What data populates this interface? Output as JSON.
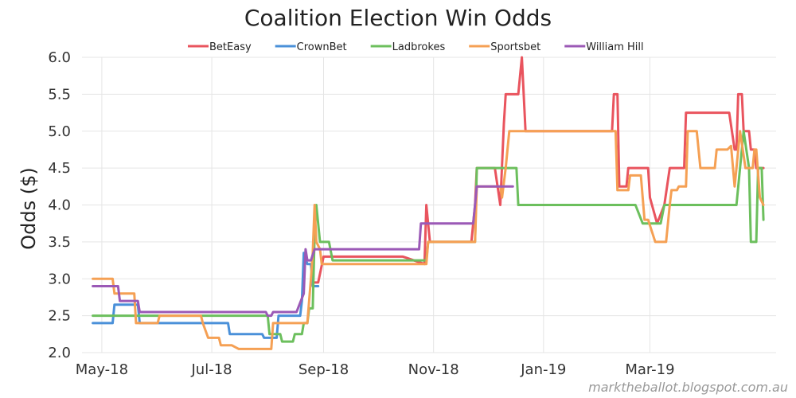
{
  "chart_data": {
    "type": "line",
    "title": "Coalition Election Win Odds",
    "xlabel": "",
    "ylabel": "Odds ($)",
    "ylim": [
      2.0,
      6.0
    ],
    "yticks": [
      "2.0",
      "2.5",
      "3.0",
      "3.5",
      "4.0",
      "4.5",
      "5.0",
      "5.5",
      "6.0"
    ],
    "xlim": [
      "2018-04-20",
      "2019-05-10"
    ],
    "xticks": [
      {
        "date": "2018-05-01",
        "label": "May-18"
      },
      {
        "date": "2018-07-01",
        "label": "Jul-18"
      },
      {
        "date": "2018-09-01",
        "label": "Sep-18"
      },
      {
        "date": "2018-11-01",
        "label": "Nov-18"
      },
      {
        "date": "2019-01-01",
        "label": "Jan-19"
      },
      {
        "date": "2019-03-01",
        "label": "Mar-19"
      }
    ],
    "grid": true,
    "legend_position": "top",
    "credit": "marktheballot.blogspot.com.au",
    "series": [
      {
        "name": "BetEasy",
        "color": "#e9545e",
        "points": [
          [
            "2018-08-25",
            2.95
          ],
          [
            "2018-08-29",
            2.95
          ],
          [
            "2018-09-01",
            3.3
          ],
          [
            "2018-10-15",
            3.3
          ],
          [
            "2018-10-27",
            3.2
          ],
          [
            "2018-10-28",
            4.0
          ],
          [
            "2018-10-30",
            3.5
          ],
          [
            "2018-11-22",
            3.5
          ],
          [
            "2018-11-24",
            4.0
          ],
          [
            "2018-11-25",
            4.5
          ],
          [
            "2018-12-05",
            4.5
          ],
          [
            "2018-12-08",
            4.0
          ],
          [
            "2018-12-10",
            5.1
          ],
          [
            "2018-12-11",
            5.5
          ],
          [
            "2018-12-18",
            5.5
          ],
          [
            "2018-12-20",
            6.0
          ],
          [
            "2018-12-22",
            5.0
          ],
          [
            "2019-02-08",
            5.0
          ],
          [
            "2019-02-09",
            5.5
          ],
          [
            "2019-02-11",
            5.5
          ],
          [
            "2019-02-12",
            4.25
          ],
          [
            "2019-02-16",
            4.25
          ],
          [
            "2019-02-17",
            4.5
          ],
          [
            "2019-02-28",
            4.5
          ],
          [
            "2019-03-01",
            4.1
          ],
          [
            "2019-03-05",
            3.75
          ],
          [
            "2019-03-09",
            4.0
          ],
          [
            "2019-03-12",
            4.5
          ],
          [
            "2019-03-20",
            4.5
          ],
          [
            "2019-03-21",
            5.25
          ],
          [
            "2019-04-14",
            5.25
          ],
          [
            "2019-04-17",
            4.75
          ],
          [
            "2019-04-18",
            4.75
          ],
          [
            "2019-04-19",
            5.5
          ],
          [
            "2019-04-21",
            5.5
          ],
          [
            "2019-04-22",
            5.0
          ],
          [
            "2019-04-25",
            5.0
          ],
          [
            "2019-04-26",
            4.75
          ],
          [
            "2019-04-28",
            4.75
          ],
          [
            "2019-04-29",
            4.5
          ],
          [
            "2019-05-03",
            4.5
          ]
        ]
      },
      {
        "name": "CrownBet",
        "color": "#4a90d9",
        "points": [
          [
            "2018-04-26",
            2.4
          ],
          [
            "2018-05-07",
            2.4
          ],
          [
            "2018-05-08",
            2.65
          ],
          [
            "2018-05-21",
            2.65
          ],
          [
            "2018-05-22",
            2.4
          ],
          [
            "2018-07-10",
            2.4
          ],
          [
            "2018-07-11",
            2.25
          ],
          [
            "2018-07-29",
            2.25
          ],
          [
            "2018-07-30",
            2.2
          ],
          [
            "2018-08-06",
            2.2
          ],
          [
            "2018-08-07",
            2.5
          ],
          [
            "2018-08-19",
            2.5
          ],
          [
            "2018-08-20",
            2.7
          ],
          [
            "2018-08-21",
            3.35
          ],
          [
            "2018-08-23",
            3.2
          ],
          [
            "2018-08-25",
            3.2
          ],
          [
            "2018-08-26",
            2.9
          ],
          [
            "2018-08-29",
            2.9
          ]
        ]
      },
      {
        "name": "Ladbrokes",
        "color": "#6cbf5d",
        "points": [
          [
            "2018-04-26",
            2.5
          ],
          [
            "2018-08-01",
            2.5
          ],
          [
            "2018-08-02",
            2.25
          ],
          [
            "2018-08-08",
            2.25
          ],
          [
            "2018-08-09",
            2.15
          ],
          [
            "2018-08-15",
            2.15
          ],
          [
            "2018-08-16",
            2.25
          ],
          [
            "2018-08-20",
            2.25
          ],
          [
            "2018-08-21",
            2.4
          ],
          [
            "2018-08-23",
            2.4
          ],
          [
            "2018-08-24",
            2.6
          ],
          [
            "2018-08-26",
            2.6
          ],
          [
            "2018-08-27",
            3.6
          ],
          [
            "2018-08-28",
            4.0
          ],
          [
            "2018-08-30",
            3.5
          ],
          [
            "2018-09-04",
            3.5
          ],
          [
            "2018-09-06",
            3.25
          ],
          [
            "2018-10-28",
            3.25
          ],
          [
            "2018-10-29",
            3.5
          ],
          [
            "2018-11-24",
            3.5
          ],
          [
            "2018-11-25",
            4.5
          ],
          [
            "2018-12-17",
            4.5
          ],
          [
            "2018-12-18",
            4.0
          ],
          [
            "2019-02-21",
            4.0
          ],
          [
            "2019-02-25",
            3.75
          ],
          [
            "2019-03-07",
            3.75
          ],
          [
            "2019-03-09",
            4.0
          ],
          [
            "2019-04-18",
            4.0
          ],
          [
            "2019-04-22",
            5.0
          ],
          [
            "2019-04-25",
            4.5
          ],
          [
            "2019-04-26",
            3.5
          ],
          [
            "2019-04-29",
            3.5
          ],
          [
            "2019-04-30",
            4.5
          ],
          [
            "2019-05-02",
            4.5
          ],
          [
            "2019-05-03",
            3.8
          ]
        ]
      },
      {
        "name": "Sportsbet",
        "color": "#f5a054",
        "points": [
          [
            "2018-04-26",
            3.0
          ],
          [
            "2018-05-07",
            3.0
          ],
          [
            "2018-05-08",
            2.8
          ],
          [
            "2018-05-19",
            2.8
          ],
          [
            "2018-05-20",
            2.4
          ],
          [
            "2018-06-01",
            2.4
          ],
          [
            "2018-06-02",
            2.5
          ],
          [
            "2018-06-25",
            2.5
          ],
          [
            "2018-06-26",
            2.4
          ],
          [
            "2018-06-29",
            2.2
          ],
          [
            "2018-07-05",
            2.2
          ],
          [
            "2018-07-06",
            2.1
          ],
          [
            "2018-07-12",
            2.1
          ],
          [
            "2018-07-16",
            2.05
          ],
          [
            "2018-08-03",
            2.05
          ],
          [
            "2018-08-04",
            2.4
          ],
          [
            "2018-08-23",
            2.4
          ],
          [
            "2018-08-25",
            3.0
          ],
          [
            "2018-08-26",
            3.35
          ],
          [
            "2018-08-27",
            4.0
          ],
          [
            "2018-08-28",
            3.5
          ],
          [
            "2018-08-30",
            3.4
          ],
          [
            "2018-08-31",
            3.2
          ],
          [
            "2018-10-28",
            3.2
          ],
          [
            "2018-10-29",
            3.5
          ],
          [
            "2018-11-24",
            3.5
          ],
          [
            "2018-11-25",
            4.25
          ],
          [
            "2018-12-08",
            4.25
          ],
          [
            "2018-12-09",
            4.1
          ],
          [
            "2018-12-11",
            4.5
          ],
          [
            "2018-12-13",
            5.0
          ],
          [
            "2019-02-10",
            5.0
          ],
          [
            "2019-02-11",
            4.2
          ],
          [
            "2019-02-17",
            4.2
          ],
          [
            "2019-02-18",
            4.4
          ],
          [
            "2019-02-24",
            4.4
          ],
          [
            "2019-02-26",
            3.8
          ],
          [
            "2019-02-28",
            3.8
          ],
          [
            "2019-03-04",
            3.5
          ],
          [
            "2019-03-10",
            3.5
          ],
          [
            "2019-03-12",
            4.0
          ],
          [
            "2019-03-13",
            4.2
          ],
          [
            "2019-03-16",
            4.2
          ],
          [
            "2019-03-17",
            4.25
          ],
          [
            "2019-03-21",
            4.25
          ],
          [
            "2019-03-22",
            5.0
          ],
          [
            "2019-03-27",
            5.0
          ],
          [
            "2019-03-29",
            4.5
          ],
          [
            "2019-04-06",
            4.5
          ],
          [
            "2019-04-07",
            4.75
          ],
          [
            "2019-04-13",
            4.75
          ],
          [
            "2019-04-15",
            4.8
          ],
          [
            "2019-04-17",
            4.25
          ],
          [
            "2019-04-18",
            4.5
          ],
          [
            "2019-04-20",
            5.0
          ],
          [
            "2019-04-23",
            4.5
          ],
          [
            "2019-04-27",
            4.5
          ],
          [
            "2019-04-28",
            4.75
          ],
          [
            "2019-04-29",
            4.75
          ],
          [
            "2019-05-01",
            4.1
          ],
          [
            "2019-05-03",
            4.0
          ]
        ]
      },
      {
        "name": "William Hill",
        "color": "#9b59b6",
        "points": [
          [
            "2018-04-26",
            2.9
          ],
          [
            "2018-05-10",
            2.9
          ],
          [
            "2018-05-11",
            2.7
          ],
          [
            "2018-05-21",
            2.7
          ],
          [
            "2018-05-22",
            2.55
          ],
          [
            "2018-07-31",
            2.55
          ],
          [
            "2018-08-01",
            2.5
          ],
          [
            "2018-08-03",
            2.5
          ],
          [
            "2018-08-04",
            2.55
          ],
          [
            "2018-08-17",
            2.55
          ],
          [
            "2018-08-21",
            2.8
          ],
          [
            "2018-08-22",
            3.4
          ],
          [
            "2018-08-23",
            3.25
          ],
          [
            "2018-08-25",
            3.25
          ],
          [
            "2018-08-27",
            3.4
          ],
          [
            "2018-10-24",
            3.4
          ],
          [
            "2018-10-25",
            3.75
          ],
          [
            "2018-11-23",
            3.75
          ],
          [
            "2018-11-25",
            4.25
          ],
          [
            "2018-12-15",
            4.25
          ]
        ]
      }
    ]
  }
}
